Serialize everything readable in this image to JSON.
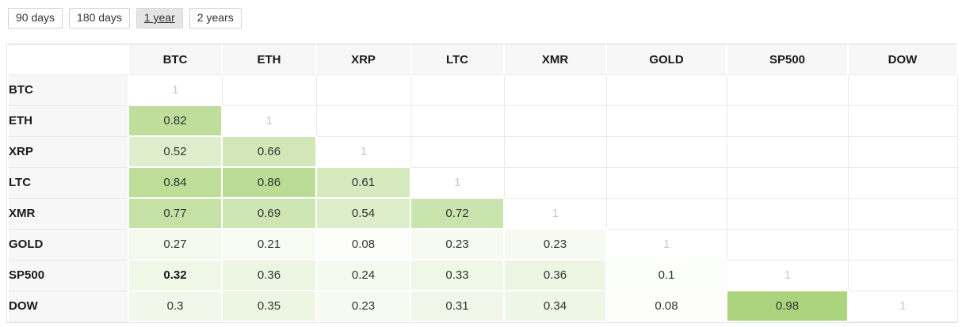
{
  "toolbar": {
    "ranges": [
      {
        "label": "90 days",
        "selected": false
      },
      {
        "label": "180 days",
        "selected": false
      },
      {
        "label": "1 year",
        "selected": true
      },
      {
        "label": "2 years",
        "selected": false
      }
    ]
  },
  "chart_data": {
    "type": "heatmap",
    "description": "Asset correlation matrix, lower triangle filled, selected range 1 year",
    "categories": [
      "BTC",
      "ETH",
      "XRP",
      "LTC",
      "XMR",
      "GOLD",
      "SP500",
      "DOW"
    ],
    "matrix": [
      [
        1,
        null,
        null,
        null,
        null,
        null,
        null,
        null
      ],
      [
        0.82,
        1,
        null,
        null,
        null,
        null,
        null,
        null
      ],
      [
        0.52,
        0.66,
        1,
        null,
        null,
        null,
        null,
        null
      ],
      [
        0.84,
        0.86,
        0.61,
        1,
        null,
        null,
        null,
        null
      ],
      [
        0.77,
        0.69,
        0.54,
        0.72,
        1,
        null,
        null,
        null
      ],
      [
        0.27,
        0.21,
        0.08,
        0.23,
        0.23,
        1,
        null,
        null
      ],
      [
        0.32,
        0.36,
        0.24,
        0.33,
        0.36,
        0.1,
        1,
        null
      ],
      [
        0.3,
        0.35,
        0.23,
        0.31,
        0.34,
        0.08,
        0.98,
        1
      ]
    ],
    "emphasized_cell": {
      "row": 6,
      "col": 0
    },
    "colorscale": {
      "low": "#ffffff",
      "high": "#a9d37a",
      "exponent": 1.5
    },
    "diagonal_value": "1"
  },
  "colors": {
    "header_bg": "#f7f7f7",
    "grid_border": "#e9e9e9",
    "table_outline": "#e4e4e4",
    "diagonal_text": "#c9c9c9",
    "heat_high": "#a9d37a",
    "selected_button_bg": "#e5e5e5"
  }
}
